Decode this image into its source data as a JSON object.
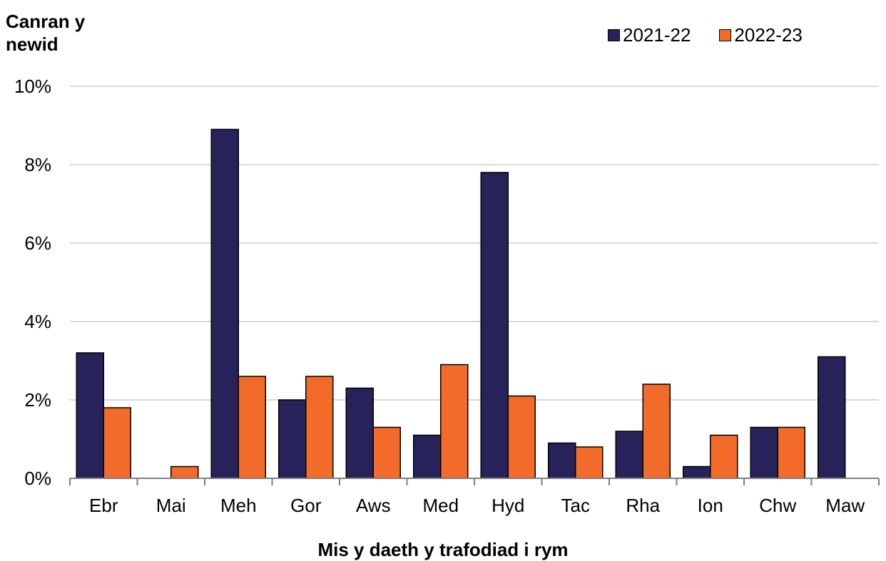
{
  "chart_data": {
    "type": "bar",
    "ylabel": "Canran y\nnewid",
    "xlabel": "Mis y daeth y trafodiad i rym",
    "categories": [
      "Ebr",
      "Mai",
      "Meh",
      "Gor",
      "Aws",
      "Med",
      "Hyd",
      "Tac",
      "Rha",
      "Ion",
      "Chw",
      "Maw"
    ],
    "series": [
      {
        "name": "2021-22",
        "color": "#27235a",
        "values": [
          3.2,
          null,
          8.9,
          2.0,
          2.3,
          1.1,
          7.8,
          0.9,
          1.2,
          0.3,
          1.3,
          3.1
        ]
      },
      {
        "name": "2022-23",
        "color": "#f26b2a",
        "values": [
          1.8,
          0.3,
          2.6,
          2.6,
          1.3,
          2.9,
          2.1,
          0.8,
          2.4,
          1.1,
          1.3,
          null
        ]
      }
    ],
    "ylim": [
      0,
      10
    ],
    "yticks": [
      0,
      2,
      4,
      6,
      8,
      10
    ],
    "ytick_labels": [
      "0%",
      "2%",
      "4%",
      "6%",
      "8%",
      "10%"
    ],
    "grid": true,
    "legend_position": "top-right"
  }
}
